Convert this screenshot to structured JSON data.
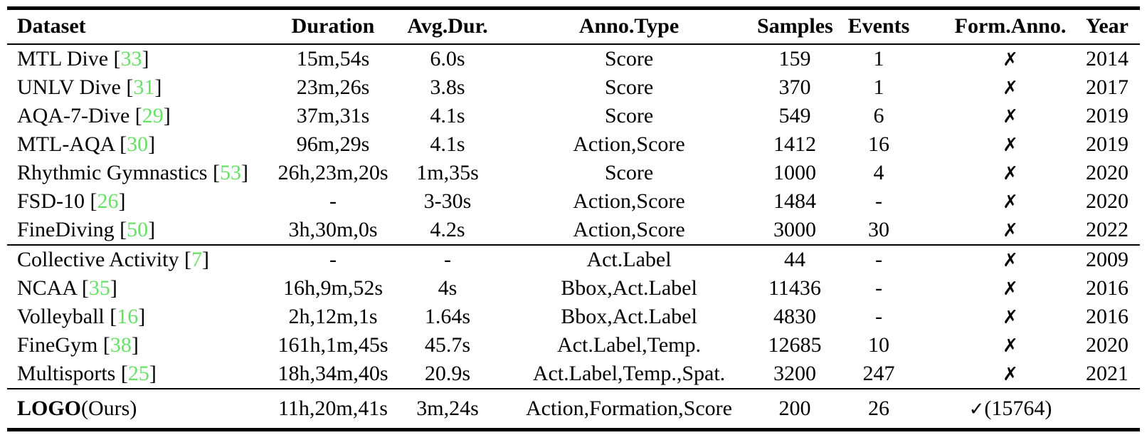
{
  "table": {
    "citation_color": "#66e166",
    "text_color": "#000000",
    "cite_open": "[",
    "cite_close": "]",
    "columns": [
      "Dataset",
      "Duration",
      "Avg.Dur.",
      "Anno.Type",
      "Samples",
      "Events",
      "Form.Anno.",
      "Year"
    ],
    "groups": [
      {
        "rows": [
          {
            "dataset": "MTL Dive",
            "cite": "33",
            "duration": "15m,54s",
            "avg_dur": "6.0s",
            "anno_type": "Score",
            "samples": "159",
            "events": "1",
            "form": {
              "mark": "✗",
              "note": ""
            },
            "year": "2014"
          },
          {
            "dataset": "UNLV Dive",
            "cite": "31",
            "duration": "23m,26s",
            "avg_dur": "3.8s",
            "anno_type": "Score",
            "samples": "370",
            "events": "1",
            "form": {
              "mark": "✗",
              "note": ""
            },
            "year": "2017"
          },
          {
            "dataset": "AQA-7-Dive",
            "cite": "29",
            "duration": "37m,31s",
            "avg_dur": "4.1s",
            "anno_type": "Score",
            "samples": "549",
            "events": "6",
            "form": {
              "mark": "✗",
              "note": ""
            },
            "year": "2019"
          },
          {
            "dataset": "MTL-AQA",
            "cite": "30",
            "duration": "96m,29s",
            "avg_dur": "4.1s",
            "anno_type": "Action,Score",
            "samples": "1412",
            "events": "16",
            "form": {
              "mark": "✗",
              "note": ""
            },
            "year": "2019"
          },
          {
            "dataset": "Rhythmic Gymnastics",
            "cite": "53",
            "duration": "26h,23m,20s",
            "avg_dur": "1m,35s",
            "anno_type": "Score",
            "samples": "1000",
            "events": "4",
            "form": {
              "mark": "✗",
              "note": ""
            },
            "year": "2020"
          },
          {
            "dataset": "FSD-10",
            "cite": "26",
            "duration": "-",
            "avg_dur": "3-30s",
            "anno_type": "Action,Score",
            "samples": "1484",
            "events": "-",
            "form": {
              "mark": "✗",
              "note": ""
            },
            "year": "2020"
          },
          {
            "dataset": "FineDiving",
            "cite": "50",
            "duration": "3h,30m,0s",
            "avg_dur": "4.2s",
            "anno_type": "Action,Score",
            "samples": "3000",
            "events": "30",
            "form": {
              "mark": "✗",
              "note": ""
            },
            "year": "2022"
          }
        ]
      },
      {
        "rows": [
          {
            "dataset": "Collective Activity",
            "cite": "7",
            "duration": "-",
            "avg_dur": "-",
            "anno_type": "Act.Label",
            "samples": "44",
            "events": "-",
            "form": {
              "mark": "✗",
              "note": ""
            },
            "year": "2009"
          },
          {
            "dataset": "NCAA",
            "cite": "35",
            "duration": "16h,9m,52s",
            "avg_dur": "4s",
            "anno_type": "Bbox,Act.Label",
            "samples": "11436",
            "events": "-",
            "form": {
              "mark": "✗",
              "note": ""
            },
            "year": "2016"
          },
          {
            "dataset": "Volleyball",
            "cite": "16",
            "duration": "2h,12m,1s",
            "avg_dur": "1.64s",
            "anno_type": "Bbox,Act.Label",
            "samples": "4830",
            "events": "-",
            "form": {
              "mark": "✗",
              "note": ""
            },
            "year": "2016"
          },
          {
            "dataset": "FineGym",
            "cite": "38",
            "duration": "161h,1m,45s",
            "avg_dur": "45.7s",
            "anno_type": "Act.Label,Temp.",
            "samples": "12685",
            "events": "10",
            "form": {
              "mark": "✗",
              "note": ""
            },
            "year": "2020"
          },
          {
            "dataset": "Multisports",
            "cite": "25",
            "duration": "18h,34m,40s",
            "avg_dur": "20.9s",
            "anno_type": "Act.Label,Temp.,Spat.",
            "samples": "3200",
            "events": "247",
            "form": {
              "mark": "✗",
              "note": ""
            },
            "year": "2021"
          }
        ]
      },
      {
        "rows": [
          {
            "dataset": "LOGO",
            "dataset_bold": true,
            "dataset_suffix": "(Ours)",
            "cite": null,
            "duration": "11h,20m,41s",
            "avg_dur": "3m,24s",
            "anno_type": "Action,Formation,Score",
            "samples": "200",
            "events": "26",
            "form": {
              "mark": "✓",
              "note": "(15764)"
            },
            "year": ""
          }
        ]
      }
    ]
  }
}
